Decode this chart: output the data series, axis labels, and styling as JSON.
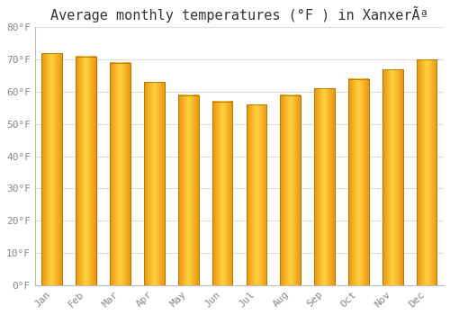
{
  "title": "Average monthly temperatures (°F ) in XanxerÃª",
  "months": [
    "Jan",
    "Feb",
    "Mar",
    "Apr",
    "May",
    "Jun",
    "Jul",
    "Aug",
    "Sep",
    "Oct",
    "Nov",
    "Dec"
  ],
  "values": [
    72,
    71,
    69,
    63,
    59,
    57,
    56,
    59,
    61,
    64,
    67,
    70
  ],
  "bar_color_center": "#FFD060",
  "bar_color_edge": "#E89000",
  "bar_border_color": "#AA7700",
  "ylim": [
    0,
    80
  ],
  "yticks": [
    0,
    10,
    20,
    30,
    40,
    50,
    60,
    70,
    80
  ],
  "ytick_labels": [
    "0°F",
    "10°F",
    "20°F",
    "30°F",
    "40°F",
    "50°F",
    "60°F",
    "70°F",
    "80°F"
  ],
  "background_color": "#FFFFFF",
  "grid_color": "#DDDDDD",
  "title_fontsize": 11,
  "tick_fontsize": 8,
  "font_family": "monospace",
  "bar_width": 0.6
}
